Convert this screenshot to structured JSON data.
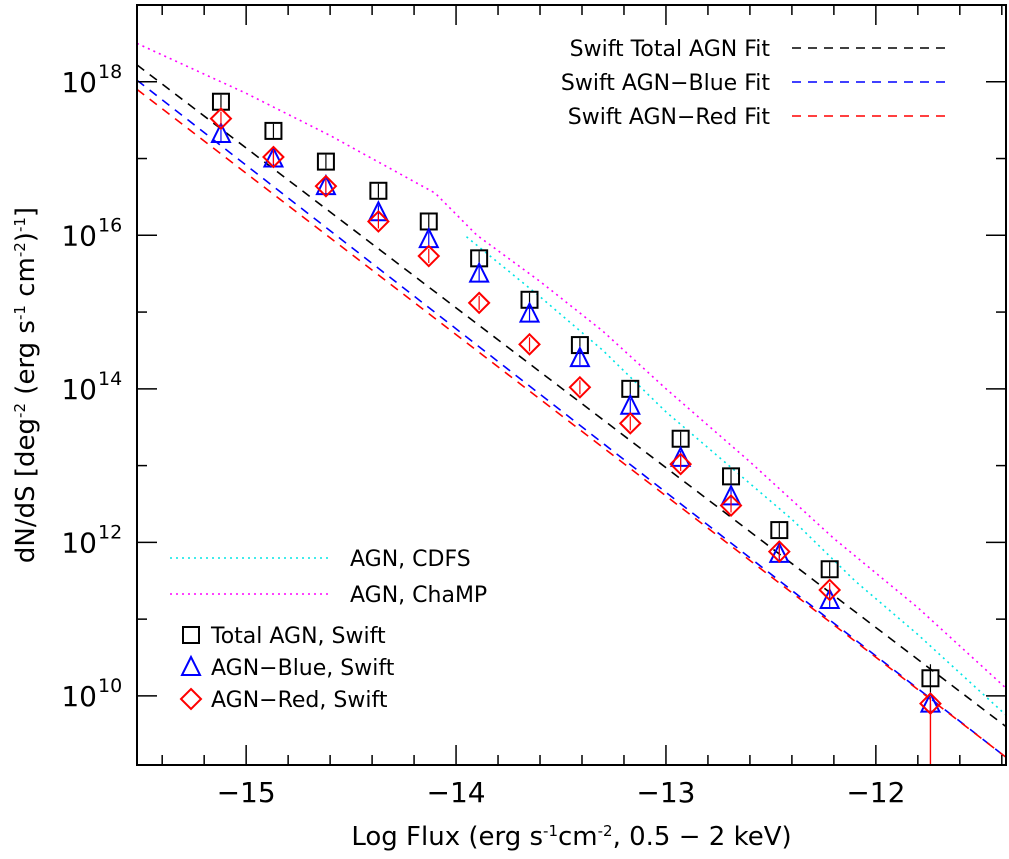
{
  "chart_data": {
    "type": "scatter",
    "xlabel_parts": [
      "Log Flux (erg s",
      "-1",
      "cm",
      "-2",
      ", 0.5 − 2 keV)"
    ],
    "ylabel_parts": [
      "dN/dS [deg",
      "-2",
      " (erg s",
      "-1",
      " cm",
      "-2",
      ")",
      "-1",
      "]"
    ],
    "xlim": [
      -15.52,
      -11.38
    ],
    "ylim_log10": [
      9.1,
      19.0
    ],
    "x_ticks": [
      {
        "value": -15,
        "label": "−15"
      },
      {
        "value": -14,
        "label": "−14"
      },
      {
        "value": -13,
        "label": "−13"
      },
      {
        "value": -12,
        "label": "−12"
      }
    ],
    "y_ticks": [
      {
        "exp": 10,
        "base": "10",
        "sup": "10"
      },
      {
        "exp": 12,
        "base": "10",
        "sup": "12"
      },
      {
        "exp": 14,
        "base": "10",
        "sup": "14"
      },
      {
        "exp": 16,
        "base": "10",
        "sup": "16"
      },
      {
        "exp": 18,
        "base": "10",
        "sup": "18"
      }
    ],
    "fit_lines": [
      {
        "name": "Swift Total AGN Fit",
        "color": "#000000",
        "style": "dashed",
        "x": [
          -15.52,
          -11.38
        ],
        "log_y": [
          18.22,
          9.6
        ]
      },
      {
        "name": "Swift AGN−Blue Fit",
        "color": "#0000ff",
        "style": "dashed",
        "x": [
          -15.52,
          -11.38
        ],
        "log_y": [
          18.02,
          9.2
        ]
      },
      {
        "name": "Swift AGN−Red Fit",
        "color": "#ff0000",
        "style": "dashed",
        "x": [
          -15.52,
          -11.38
        ],
        "log_y": [
          17.9,
          9.2
        ]
      }
    ],
    "model_lines": [
      {
        "name": "AGN, CDFS",
        "color": "#00e5e5",
        "style": "dotted",
        "x": [
          -13.95,
          -13.6,
          -13.3,
          -13.0,
          -12.7,
          -12.4,
          -12.1,
          -11.8,
          -11.5,
          -11.38
        ],
        "log_y": [
          15.98,
          15.2,
          14.5,
          13.7,
          13.0,
          12.3,
          11.5,
          10.8,
          10.05,
          9.75
        ]
      },
      {
        "name": "AGN, ChaMP",
        "color": "#ff00ff",
        "style": "dotted",
        "x": [
          -15.52,
          -15.0,
          -14.6,
          -14.3,
          -14.1,
          -13.9,
          -13.6,
          -13.3,
          -13.0,
          -12.6,
          -12.2,
          -11.8,
          -11.38
        ],
        "log_y": [
          18.5,
          17.85,
          17.3,
          16.85,
          16.55,
          16.0,
          15.4,
          14.75,
          14.0,
          13.05,
          12.05,
          11.15,
          10.1
        ]
      }
    ],
    "series": [
      {
        "name": "Total AGN, Swift",
        "color": "#000000",
        "marker": "square",
        "x": [
          -15.12,
          -14.87,
          -14.62,
          -14.37,
          -14.13,
          -13.89,
          -13.65,
          -13.41,
          -13.17,
          -12.93,
          -12.69,
          -12.46,
          -12.22,
          -11.74
        ],
        "log_y": [
          17.74,
          17.36,
          16.96,
          16.58,
          16.18,
          15.7,
          15.16,
          14.57,
          14.0,
          13.35,
          12.86,
          12.16,
          11.65,
          10.23
        ]
      },
      {
        "name": "AGN−Blue, Swift",
        "color": "#0000ff",
        "marker": "triangle",
        "x": [
          -15.12,
          -14.87,
          -14.62,
          -14.37,
          -14.13,
          -13.89,
          -13.65,
          -13.41,
          -13.17,
          -12.93,
          -12.69,
          -12.46,
          -12.22,
          -11.74
        ],
        "log_y": [
          17.32,
          17.0,
          16.64,
          16.3,
          15.95,
          15.5,
          14.98,
          14.4,
          13.78,
          13.1,
          12.6,
          11.85,
          11.25,
          9.9
        ]
      },
      {
        "name": "AGN−Red, Swift",
        "color": "#ff0000",
        "marker": "diamond",
        "x": [
          -15.12,
          -14.87,
          -14.62,
          -14.37,
          -14.13,
          -13.89,
          -13.65,
          -13.41,
          -13.17,
          -12.93,
          -12.69,
          -12.46,
          -12.22,
          -11.74
        ],
        "log_y": [
          17.52,
          17.02,
          16.64,
          16.18,
          15.73,
          15.12,
          14.58,
          14.02,
          13.55,
          13.02,
          12.48,
          11.88,
          11.38,
          9.9
        ]
      }
    ],
    "legend_top": [
      {
        "label": "Swift Total AGN Fit",
        "color": "#000000"
      },
      {
        "label": "Swift AGN−Blue Fit",
        "color": "#0000ff"
      },
      {
        "label": "Swift AGN−Red Fit",
        "color": "#ff0000"
      }
    ],
    "legend_models": [
      {
        "label": "AGN, CDFS",
        "color": "#00e5e5"
      },
      {
        "label": "AGN, ChaMP",
        "color": "#ff00ff"
      }
    ],
    "legend_points": [
      {
        "label": "Total AGN, Swift",
        "color": "#000000",
        "marker": "square"
      },
      {
        "label": "AGN−Blue, Swift",
        "color": "#0000ff",
        "marker": "triangle"
      },
      {
        "label": "AGN−Red, Swift",
        "color": "#ff0000",
        "marker": "diamond"
      }
    ]
  }
}
